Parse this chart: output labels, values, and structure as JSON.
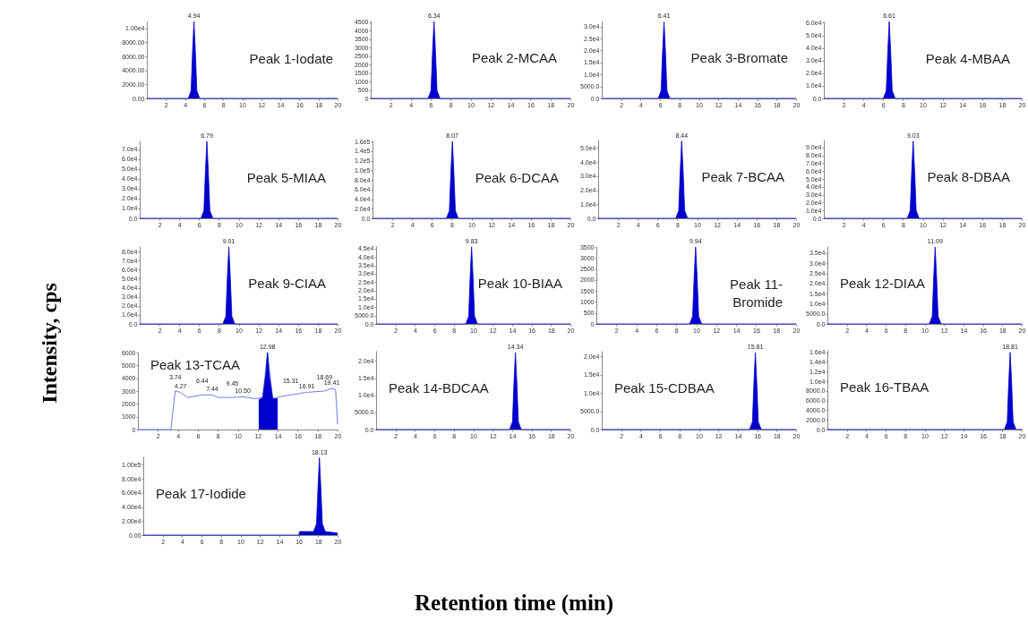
{
  "chart_data": [
    {
      "type": "area",
      "title": "Peak 1-Iodate",
      "xlim": [
        0,
        20
      ],
      "xticks": [
        2,
        4,
        6,
        8,
        10,
        12,
        14,
        16,
        18,
        20
      ],
      "ylim": [
        0,
        11000
      ],
      "yticks": [
        {
          "value": 0,
          "label": "0.00"
        },
        {
          "value": 2000,
          "label": "2000.00"
        },
        {
          "value": 4000,
          "label": "4000.00"
        },
        {
          "value": 6000,
          "label": "6000.00"
        },
        {
          "value": 8000,
          "label": "8000.00"
        },
        {
          "value": 10000,
          "label": "1.00e4"
        }
      ],
      "annotations": [
        {
          "text": "4.94",
          "x": 4.94,
          "y": 11000
        }
      ],
      "series": [
        {
          "color": "#0000cc",
          "x": [
            0,
            4.34,
            4.64,
            4.79,
            4.94,
            5.09,
            5.24,
            5.54,
            20
          ],
          "values": [
            0,
            0,
            1100,
            6600,
            11000,
            6600,
            1100,
            0,
            0
          ]
        }
      ]
    },
    {
      "type": "area",
      "title": "Peak 2-MCAA",
      "xlim": [
        0,
        20
      ],
      "xticks": [
        2,
        4,
        6,
        8,
        10,
        12,
        14,
        16,
        18,
        20
      ],
      "ylim": [
        0,
        4600
      ],
      "yticks": [
        0,
        500,
        1000,
        1500,
        2000,
        2500,
        3000,
        3500,
        4000,
        4500
      ],
      "annotations": [
        {
          "text": "6.34",
          "x": 6.34,
          "y": 4550
        }
      ],
      "series": [
        {
          "color": "#0000cc",
          "x": [
            0,
            5.74,
            6.04,
            6.19,
            6.34,
            6.49,
            6.64,
            6.94,
            20
          ],
          "values": [
            0,
            0,
            455,
            2730,
            4550,
            2730,
            455,
            0,
            0
          ]
        }
      ]
    },
    {
      "type": "area",
      "title": "Peak 3-Bromate",
      "xlim": [
        0,
        20
      ],
      "xticks": [
        2,
        4,
        6,
        8,
        10,
        12,
        14,
        16,
        18,
        20
      ],
      "ylim": [
        0,
        32500
      ],
      "yticks": [
        {
          "value": 0,
          "label": "0.0"
        },
        {
          "value": 5000,
          "label": "5000.0"
        },
        {
          "value": 10000,
          "label": "1.0e4"
        },
        {
          "value": 15000,
          "label": "1.5e4"
        },
        {
          "value": 20000,
          "label": "2.0e4"
        },
        {
          "value": 25000,
          "label": "2.5e4"
        },
        {
          "value": 30000,
          "label": "3.0e4"
        }
      ],
      "annotations": [
        {
          "text": "6.41",
          "x": 6.41,
          "y": 32000
        }
      ],
      "series": [
        {
          "color": "#0000cc",
          "x": [
            0,
            5.81,
            6.11,
            6.26,
            6.41,
            6.56,
            6.71,
            7.01,
            20
          ],
          "values": [
            0,
            0,
            3200,
            19200,
            32000,
            19200,
            3200,
            0,
            0
          ]
        }
      ]
    },
    {
      "type": "area",
      "title": "Peak 4-MBAA",
      "xlim": [
        0,
        20
      ],
      "xticks": [
        2,
        4,
        6,
        8,
        10,
        12,
        14,
        16,
        18,
        20
      ],
      "ylim": [
        0,
        61000
      ],
      "yticks": [
        {
          "value": 0,
          "label": "0.0"
        },
        {
          "value": 10000,
          "label": "1.0e4"
        },
        {
          "value": 20000,
          "label": "2.0e4"
        },
        {
          "value": 30000,
          "label": "3.0e4"
        },
        {
          "value": 40000,
          "label": "4.0e4"
        },
        {
          "value": 50000,
          "label": "5.0e4"
        },
        {
          "value": 60000,
          "label": "6.0e4"
        }
      ],
      "annotations": [
        {
          "text": "6.61",
          "x": 6.61,
          "y": 61000
        }
      ],
      "series": [
        {
          "color": "#0000cc",
          "x": [
            0,
            6.01,
            6.31,
            6.46,
            6.61,
            6.76,
            6.91,
            7.21,
            20
          ],
          "values": [
            0,
            0,
            6100,
            36600,
            61000,
            36600,
            6100,
            0,
            0
          ]
        }
      ]
    },
    {
      "type": "area",
      "title": "Peak 5-MIAA",
      "xlim": [
        0,
        20
      ],
      "xticks": [
        2,
        4,
        6,
        8,
        10,
        12,
        14,
        16,
        18,
        20
      ],
      "ylim": [
        0,
        79000
      ],
      "yticks": [
        {
          "value": 0,
          "label": "0.0"
        },
        {
          "value": 10000,
          "label": "1.0e4"
        },
        {
          "value": 20000,
          "label": "2.0e4"
        },
        {
          "value": 30000,
          "label": "3.0e4"
        },
        {
          "value": 40000,
          "label": "4.0e4"
        },
        {
          "value": 50000,
          "label": "5.0e4"
        },
        {
          "value": 60000,
          "label": "6.0e4"
        },
        {
          "value": 70000,
          "label": "7.0e4"
        }
      ],
      "annotations": [
        {
          "text": "6.79",
          "x": 6.79,
          "y": 78000
        }
      ],
      "series": [
        {
          "color": "#0000cc",
          "x": [
            0,
            6.19,
            6.49,
            6.64,
            6.79,
            6.94,
            7.09,
            7.39,
            20
          ],
          "values": [
            0,
            0,
            7800,
            46800,
            78000,
            46800,
            7800,
            0,
            0
          ]
        }
      ]
    },
    {
      "type": "area",
      "title": "Peak 6-DCAA",
      "xlim": [
        0,
        20
      ],
      "xticks": [
        2,
        4,
        6,
        8,
        10,
        12,
        14,
        16,
        18,
        20
      ],
      "ylim": [
        0,
        162000
      ],
      "yticks": [
        {
          "value": 0,
          "label": "0.0"
        },
        {
          "value": 20000,
          "label": "2.0e4"
        },
        {
          "value": 40000,
          "label": "4.0e4"
        },
        {
          "value": 60000,
          "label": "6.0e4"
        },
        {
          "value": 80000,
          "label": "8.0e4"
        },
        {
          "value": 100000,
          "label": "1.0e5"
        },
        {
          "value": 120000,
          "label": "1.2e5"
        },
        {
          "value": 140000,
          "label": "1.4e5"
        },
        {
          "value": 160000,
          "label": "1.6e5"
        }
      ],
      "annotations": [
        {
          "text": "8.07",
          "x": 8.07,
          "y": 160000
        }
      ],
      "series": [
        {
          "color": "#0000cc",
          "x": [
            0,
            7.47,
            7.77,
            7.92,
            8.07,
            8.22,
            8.37,
            8.67,
            20
          ],
          "values": [
            0,
            0,
            16000,
            96000,
            160000,
            96000,
            16000,
            0,
            0
          ]
        }
      ]
    },
    {
      "type": "area",
      "title": "Peak 7-BCAA",
      "xlim": [
        0,
        20
      ],
      "xticks": [
        2,
        4,
        6,
        8,
        10,
        12,
        14,
        16,
        18,
        20
      ],
      "ylim": [
        0,
        56000
      ],
      "yticks": [
        {
          "value": 0,
          "label": "0.0"
        },
        {
          "value": 10000,
          "label": "1.0e4"
        },
        {
          "value": 20000,
          "label": "2.0e4"
        },
        {
          "value": 30000,
          "label": "3.0e4"
        },
        {
          "value": 40000,
          "label": "4.0e4"
        },
        {
          "value": 50000,
          "label": "5.0e4"
        }
      ],
      "annotations": [
        {
          "text": "8.44",
          "x": 8.44,
          "y": 55000
        }
      ],
      "series": [
        {
          "color": "#0000cc",
          "x": [
            0,
            7.84,
            8.14,
            8.29,
            8.44,
            8.59,
            8.74,
            9.04,
            20
          ],
          "values": [
            0,
            0,
            5500,
            33000,
            55000,
            33000,
            5500,
            0,
            0
          ]
        }
      ]
    },
    {
      "type": "area",
      "title": "Peak 8-DBAA",
      "xlim": [
        0,
        20
      ],
      "xticks": [
        2,
        4,
        6,
        8,
        10,
        12,
        14,
        16,
        18,
        20
      ],
      "ylim": [
        0,
        100000
      ],
      "yticks": [
        {
          "value": 0,
          "label": "0.0"
        },
        {
          "value": 10000,
          "label": "1.0e4"
        },
        {
          "value": 20000,
          "label": "2.0e4"
        },
        {
          "value": 30000,
          "label": "3.0e4"
        },
        {
          "value": 40000,
          "label": "4.0e4"
        },
        {
          "value": 50000,
          "label": "5.0e4"
        },
        {
          "value": 60000,
          "label": "6.0e4"
        },
        {
          "value": 70000,
          "label": "7.0e4"
        },
        {
          "value": 80000,
          "label": "8.0e4"
        },
        {
          "value": 90000,
          "label": "9.0e4"
        }
      ],
      "annotations": [
        {
          "text": "9.03",
          "x": 9.03,
          "y": 98000
        }
      ],
      "series": [
        {
          "color": "#0000cc",
          "x": [
            0,
            8.43,
            8.73,
            8.88,
            9.03,
            9.18,
            9.33,
            9.63,
            20
          ],
          "values": [
            0,
            0,
            9800,
            58800,
            98000,
            58800,
            9800,
            0,
            0
          ]
        }
      ]
    },
    {
      "type": "area",
      "title": "Peak 9-CIAA",
      "ylabel": "Intensity, cps",
      "xlim": [
        0,
        20
      ],
      "xticks": [
        2,
        4,
        6,
        8,
        10,
        12,
        14,
        16,
        18,
        20
      ],
      "ylim": [
        0,
        86000
      ],
      "yticks": [
        {
          "value": 0,
          "label": "0.0"
        },
        {
          "value": 10000,
          "label": "1.0e4"
        },
        {
          "value": 20000,
          "label": "2.0e4"
        },
        {
          "value": 30000,
          "label": "3.0e4"
        },
        {
          "value": 40000,
          "label": "4.0e4"
        },
        {
          "value": 50000,
          "label": "5.0e4"
        },
        {
          "value": 60000,
          "label": "6.0e4"
        },
        {
          "value": 70000,
          "label": "7.0e4"
        },
        {
          "value": 80000,
          "label": "8.0e4"
        }
      ],
      "annotations": [
        {
          "text": "9.01",
          "x": 9.01,
          "y": 85000
        }
      ],
      "series": [
        {
          "color": "#0000cc",
          "x": [
            0,
            8.41,
            8.71,
            8.86,
            9.01,
            9.16,
            9.31,
            9.61,
            20
          ],
          "values": [
            0,
            0,
            8500,
            51000,
            85000,
            51000,
            8500,
            0,
            0
          ]
        }
      ]
    },
    {
      "type": "area",
      "title": "Peak 10-BIAA",
      "xlim": [
        0,
        20
      ],
      "xticks": [
        2,
        4,
        6,
        8,
        10,
        12,
        14,
        16,
        18,
        20
      ],
      "ylim": [
        0,
        46500
      ],
      "yticks": [
        {
          "value": 0,
          "label": "0.0"
        },
        {
          "value": 5000,
          "label": "5000.0"
        },
        {
          "value": 10000,
          "label": "1.0e4"
        },
        {
          "value": 15000,
          "label": "1.5e4"
        },
        {
          "value": 20000,
          "label": "2.0e4"
        },
        {
          "value": 25000,
          "label": "2.5e4"
        },
        {
          "value": 30000,
          "label": "3.0e4"
        },
        {
          "value": 35000,
          "label": "3.5e4"
        },
        {
          "value": 40000,
          "label": "4.0e4"
        },
        {
          "value": 45000,
          "label": "4.5e4"
        }
      ],
      "annotations": [
        {
          "text": "9.83",
          "x": 9.83,
          "y": 46000
        }
      ],
      "series": [
        {
          "color": "#0000cc",
          "x": [
            0,
            9.23,
            9.53,
            9.68,
            9.83,
            9.98,
            10.13,
            10.43,
            20
          ],
          "values": [
            0,
            0,
            4600,
            27600,
            46000,
            27600,
            4600,
            0,
            0
          ]
        }
      ]
    },
    {
      "type": "area",
      "title": "Peak 11-Bromide",
      "xlim": [
        0,
        20
      ],
      "xticks": [
        2,
        4,
        6,
        8,
        10,
        12,
        14,
        16,
        18,
        20
      ],
      "ylim": [
        0,
        3500
      ],
      "yticks": [
        0,
        500,
        1000,
        1500,
        2000,
        2500,
        3000,
        3500
      ],
      "annotations": [
        {
          "text": "9.94",
          "x": 9.94,
          "y": 3500
        }
      ],
      "series": [
        {
          "color": "#0000cc",
          "x": [
            0,
            9.34,
            9.64,
            9.79,
            9.94,
            10.09,
            10.24,
            10.54,
            20
          ],
          "values": [
            0,
            0,
            350,
            2100,
            3500,
            2100,
            350,
            0,
            0
          ]
        }
      ]
    },
    {
      "type": "area",
      "title": "Peak 12-DIAA",
      "xlim": [
        0,
        20
      ],
      "xticks": [
        2,
        4,
        6,
        8,
        10,
        12,
        14,
        16,
        18,
        20
      ],
      "ylim": [
        0,
        38500
      ],
      "yticks": [
        {
          "value": 0,
          "label": "0.0"
        },
        {
          "value": 5000,
          "label": "5000.0"
        },
        {
          "value": 10000,
          "label": "1.0e4"
        },
        {
          "value": 15000,
          "label": "1.5e4"
        },
        {
          "value": 20000,
          "label": "2.0e4"
        },
        {
          "value": 25000,
          "label": "2.5e4"
        },
        {
          "value": 30000,
          "label": "3.0e4"
        },
        {
          "value": 35000,
          "label": "3.5e4"
        }
      ],
      "annotations": [
        {
          "text": "11.09",
          "x": 11.09,
          "y": 38000
        }
      ],
      "series": [
        {
          "color": "#0000cc",
          "x": [
            0,
            10.49,
            10.79,
            10.94,
            11.09,
            11.24,
            11.39,
            11.69,
            20
          ],
          "values": [
            0,
            0,
            3800,
            22800,
            38000,
            22800,
            3800,
            0,
            0
          ]
        }
      ]
    },
    {
      "type": "line",
      "title": "Peak 13-TCAA",
      "xlim": [
        0,
        20
      ],
      "xticks": [
        2,
        4,
        6,
        8,
        10,
        12,
        14,
        16,
        18,
        20
      ],
      "ylim": [
        0,
        6000
      ],
      "yticks": [
        0,
        1000,
        2000,
        3000,
        4000,
        5000,
        6000
      ],
      "annotations": [
        {
          "text": "12.98",
          "x": 12.98,
          "y": 6000
        },
        {
          "text": "3.74",
          "x": 3.74,
          "y": 3000
        },
        {
          "text": "4.27",
          "x": 4.27,
          "y": 2900
        },
        {
          "text": "6.44",
          "x": 6.44,
          "y": 2700
        },
        {
          "text": "7.44",
          "x": 7.44,
          "y": 2700
        },
        {
          "text": "9.45",
          "x": 9.45,
          "y": 2500
        },
        {
          "text": "10.50",
          "x": 10.5,
          "y": 2550
        },
        {
          "text": "15.31",
          "x": 15.31,
          "y": 2700
        },
        {
          "text": "16.91",
          "x": 16.91,
          "y": 2900
        },
        {
          "text": "18.69",
          "x": 18.69,
          "y": 3000
        },
        {
          "text": "19.41",
          "x": 19.41,
          "y": 3200
        }
      ],
      "series": [
        {
          "color": "#6f7cf0",
          "x": [
            0,
            3.3,
            3.74,
            4.27,
            5,
            6.44,
            7.44,
            8,
            9.45,
            10.5,
            11.8,
            12.5,
            12.98,
            13.5,
            14.5,
            15.31,
            16.91,
            18.69,
            19.41,
            19.8,
            20
          ],
          "values": [
            0,
            0,
            3000,
            2900,
            2500,
            2700,
            2700,
            2500,
            2500,
            2550,
            2400,
            2500,
            6000,
            2400,
            2600,
            2700,
            2900,
            3000,
            3200,
            3100,
            400
          ]
        },
        {
          "type": "area",
          "color": "#0000cc",
          "x": [
            12.1,
            12.5,
            12.8,
            12.98,
            13.16,
            13.5,
            14
          ],
          "values": [
            2300,
            2500,
            4200,
            6000,
            4200,
            2400,
            2400
          ]
        }
      ]
    },
    {
      "type": "area",
      "title": "Peak 14-BDCAA",
      "xlim": [
        0,
        20
      ],
      "xticks": [
        2,
        4,
        6,
        8,
        10,
        12,
        14,
        16,
        18,
        20
      ],
      "ylim": [
        0,
        23000
      ],
      "yticks": [
        {
          "value": 0,
          "label": "0.0"
        },
        {
          "value": 5000,
          "label": "5000.0"
        },
        {
          "value": 10000,
          "label": "1.0e4"
        },
        {
          "value": 15000,
          "label": "1.5e4"
        },
        {
          "value": 20000,
          "label": "2.0e4"
        }
      ],
      "annotations": [
        {
          "text": "14.34",
          "x": 14.34,
          "y": 22500
        }
      ],
      "series": [
        {
          "color": "#0000cc",
          "x": [
            0,
            13.74,
            14.04,
            14.19,
            14.34,
            14.49,
            14.64,
            14.94,
            20
          ],
          "values": [
            0,
            0,
            2250,
            13500,
            22500,
            13500,
            2250,
            0,
            0
          ]
        }
      ]
    },
    {
      "type": "area",
      "title": "Peak 15-CDBAA",
      "xlim": [
        0,
        20
      ],
      "xticks": [
        2,
        4,
        6,
        8,
        10,
        12,
        14,
        16,
        18,
        20
      ],
      "ylim": [
        0,
        21500
      ],
      "yticks": [
        {
          "value": 0,
          "label": "0.0"
        },
        {
          "value": 5000,
          "label": "5000.0"
        },
        {
          "value": 10000,
          "label": "1.0e4"
        },
        {
          "value": 15000,
          "label": "1.5e4"
        },
        {
          "value": 20000,
          "label": "2.0e4"
        }
      ],
      "annotations": [
        {
          "text": "15.81",
          "x": 15.81,
          "y": 21000
        }
      ],
      "series": [
        {
          "color": "#0000cc",
          "x": [
            0,
            15.21,
            15.51,
            15.66,
            15.81,
            15.96,
            16.11,
            16.41,
            20
          ],
          "values": [
            0,
            0,
            2100,
            12600,
            21000,
            12600,
            2100,
            0,
            0
          ]
        }
      ]
    },
    {
      "type": "area",
      "title": "Peak 16-TBAA",
      "xlim": [
        0,
        20
      ],
      "xticks": [
        2,
        4,
        6,
        8,
        10,
        12,
        14,
        16,
        18,
        20
      ],
      "ylim": [
        0,
        16500
      ],
      "yticks": [
        {
          "value": 0,
          "label": "0.0"
        },
        {
          "value": 2000,
          "label": "2000.0"
        },
        {
          "value": 4000,
          "label": "4000.0"
        },
        {
          "value": 6000,
          "label": "6000.0"
        },
        {
          "value": 8000,
          "label": "8000.0"
        },
        {
          "value": 10000,
          "label": "1.0e4"
        },
        {
          "value": 12000,
          "label": "1.2e4"
        },
        {
          "value": 14000,
          "label": "1.4e4"
        },
        {
          "value": 16000,
          "label": "1.6e4"
        }
      ],
      "annotations": [
        {
          "text": "18.81",
          "x": 18.81,
          "y": 16000
        }
      ],
      "series": [
        {
          "color": "#0000cc",
          "x": [
            0,
            18.21,
            18.51,
            18.66,
            18.81,
            18.96,
            19.11,
            19.41,
            20
          ],
          "values": [
            0,
            0,
            1600,
            9600,
            16000,
            9600,
            1600,
            0,
            0
          ]
        }
      ]
    },
    {
      "type": "area",
      "title": "Peak 17-Iodide",
      "xlabel": "Retention time (min)",
      "xlim": [
        0,
        20
      ],
      "xticks": [
        2,
        4,
        6,
        8,
        10,
        12,
        14,
        16,
        18,
        20
      ],
      "ylim": [
        0,
        112000
      ],
      "yticks": [
        {
          "value": 0,
          "label": "0.00"
        },
        {
          "value": 20000,
          "label": "2.00e4"
        },
        {
          "value": 40000,
          "label": "4.00e4"
        },
        {
          "value": 60000,
          "label": "6.00e4"
        },
        {
          "value": 80000,
          "label": "8.00e4"
        },
        {
          "value": 100000,
          "label": "1.00e5"
        }
      ],
      "annotations": [
        {
          "text": "18.13",
          "x": 18.13,
          "y": 110000
        }
      ],
      "series": [
        {
          "color": "#0000cc",
          "x": [
            0,
            16,
            16.1,
            17.53,
            17.83,
            17.98,
            18.13,
            18.28,
            18.43,
            18.73,
            20
          ],
          "values": [
            0,
            0,
            5000,
            5000,
            16000,
            66000,
            110000,
            66000,
            16000,
            5000,
            3000
          ]
        }
      ]
    }
  ]
}
